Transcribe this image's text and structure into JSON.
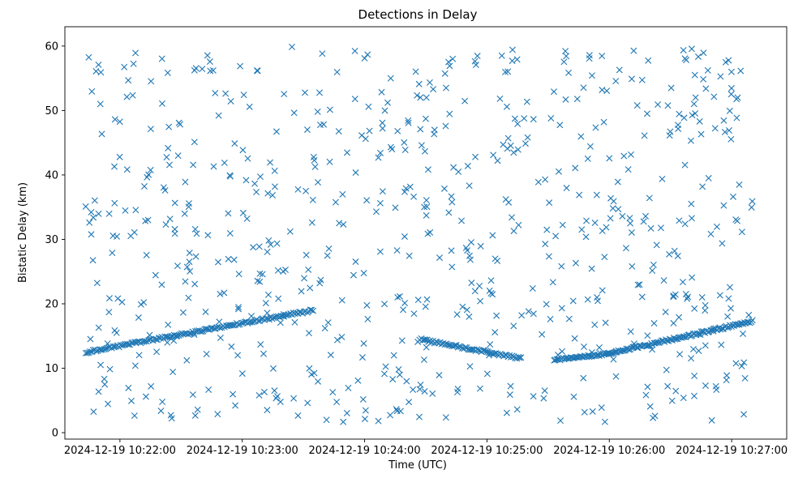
{
  "chart_data": {
    "type": "scatter",
    "title": "Detections in Delay",
    "xlabel": "Time (UTC)",
    "ylabel": "Bistatic Delay (km)",
    "marker": "x",
    "color": "#1f77b4",
    "xlim": [
      -0.45,
      5.45
    ],
    "ylim": [
      -1,
      63
    ],
    "xticks": [
      {
        "value": 0,
        "label": "2024-12-19 10:22:00"
      },
      {
        "value": 1,
        "label": "2024-12-19 10:23:00"
      },
      {
        "value": 2,
        "label": "2024-12-19 10:24:00"
      },
      {
        "value": 3,
        "label": "2024-12-19 10:25:00"
      },
      {
        "value": 4,
        "label": "2024-12-19 10:26:00"
      },
      {
        "value": 5,
        "label": "2024-12-19 10:27:00"
      }
    ],
    "yticks": [
      0,
      10,
      20,
      30,
      40,
      50,
      60
    ],
    "x_unit": "minutes after 2024-12-19 10:22:00 UTC",
    "track_segments": [
      {
        "x_start": -0.28,
        "x_end": 1.58,
        "y_start": 12.5,
        "y_end": 19.0,
        "points": 150
      },
      {
        "x_start": 2.45,
        "x_end": 3.28,
        "y_start": 14.5,
        "y_end": 11.5,
        "points": 70
      },
      {
        "x_start": 3.55,
        "x_end": 4.0,
        "y_start": 11.3,
        "y_end": 12.3,
        "points": 45
      },
      {
        "x_start": 4.0,
        "x_end": 5.17,
        "y_start": 12.3,
        "y_end": 17.3,
        "points": 110
      }
    ],
    "clutter_points": 700,
    "x_range_data": [
      -0.28,
      5.17
    ],
    "y_range_data": [
      1.5,
      60
    ]
  }
}
